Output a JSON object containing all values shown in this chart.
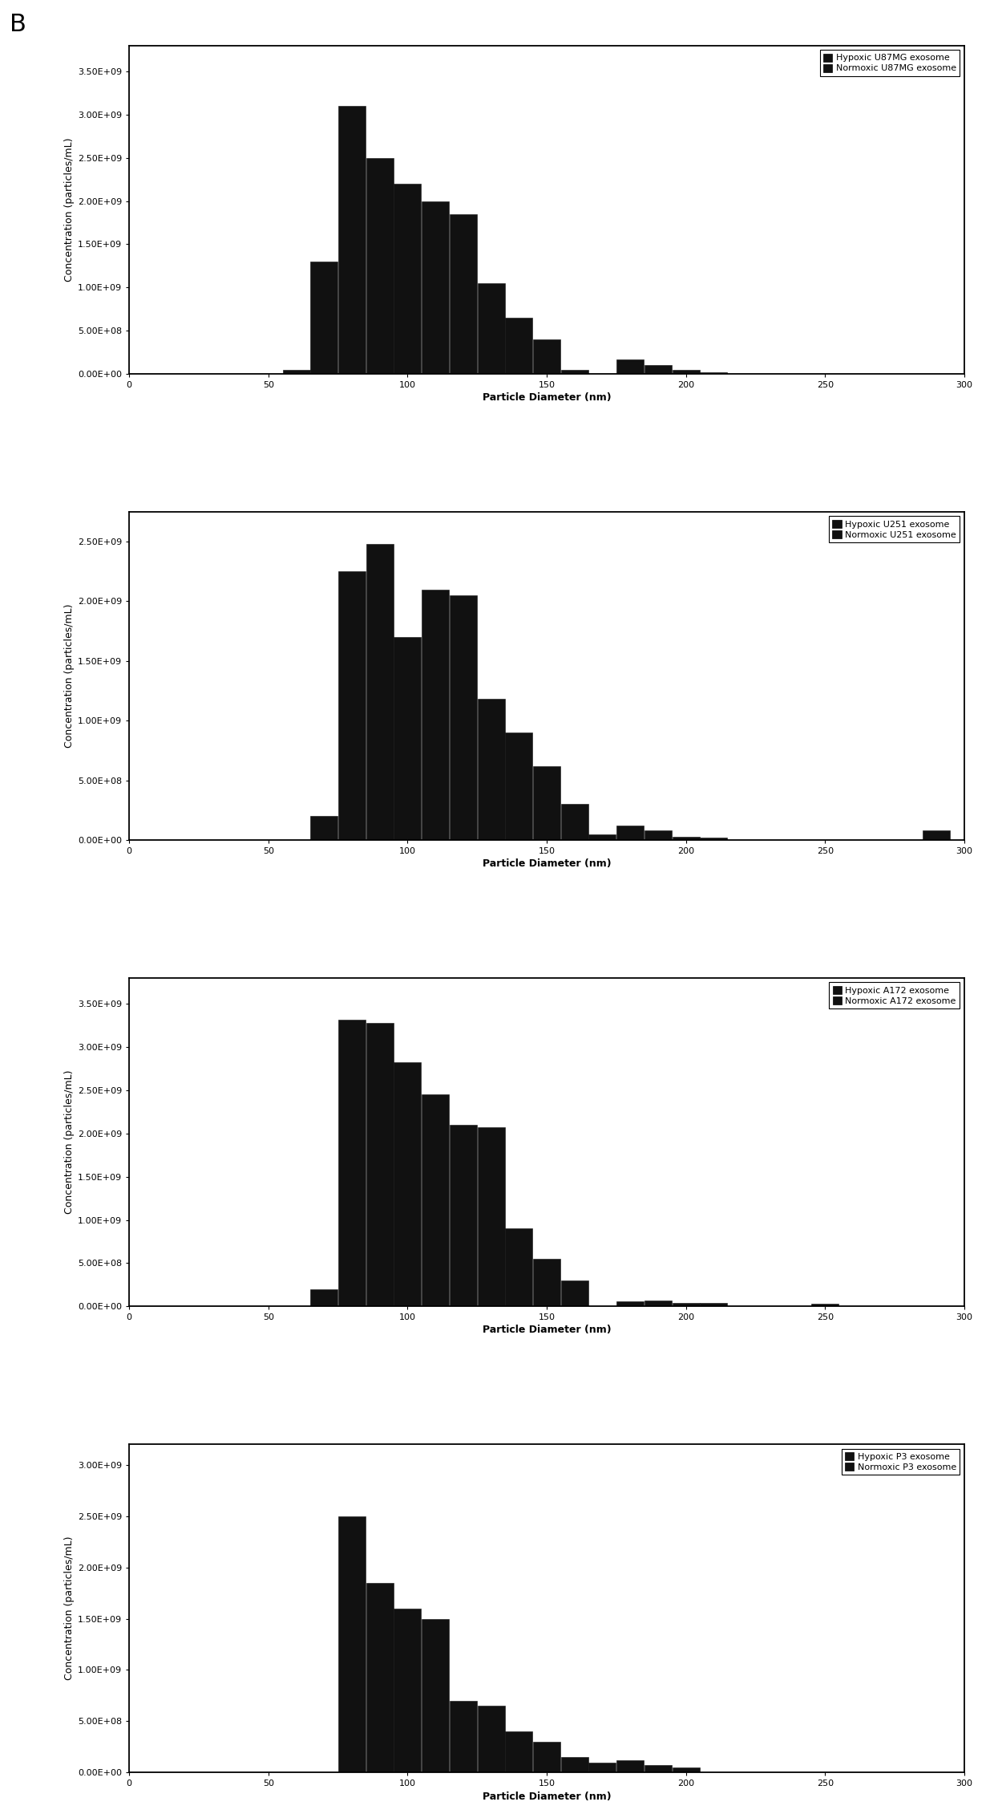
{
  "charts": [
    {
      "legend_labels": [
        "Hypoxic U87MG exosome",
        "Normoxic U87MG exosome"
      ],
      "ylabel": "Concentration (particles/mL)",
      "xlabel": "Particle Diameter (nm)",
      "xlim": [
        0,
        300
      ],
      "ylim": [
        0,
        3800000000.0
      ],
      "yticks": [
        0.0,
        500000000.0,
        1000000000.0,
        1500000000.0,
        2000000000.0,
        2500000000.0,
        3000000000.0,
        3500000000.0
      ],
      "ytick_labels": [
        "0.00E+00",
        "5.00E+08",
        "1.00E+09",
        "1.50E+09",
        "2.00E+09",
        "2.50E+09",
        "3.00E+09",
        "3.50E+09"
      ],
      "xticks": [
        0,
        50,
        100,
        150,
        200,
        250,
        300
      ],
      "bar_centers": [
        60,
        70,
        80,
        90,
        100,
        110,
        120,
        130,
        140,
        150,
        160,
        170,
        180,
        190,
        200,
        210,
        220
      ],
      "bar_values": [
        50000000.0,
        1300000000.0,
        3100000000.0,
        2500000000.0,
        2200000000.0,
        2000000000.0,
        1850000000.0,
        1050000000.0,
        650000000.0,
        400000000.0,
        50000000.0,
        0.0,
        170000000.0,
        100000000.0,
        50000000.0,
        20000000.0,
        0.0
      ],
      "bar_width": 9.8,
      "bar_color": "#111111"
    },
    {
      "legend_labels": [
        "Hypoxic U251 exosome",
        "Normoxic U251 exosome"
      ],
      "ylabel": "Concentration (particles/mL)",
      "xlabel": "Particle Diameter (nm)",
      "xlim": [
        0,
        300
      ],
      "ylim": [
        0,
        2750000000.0
      ],
      "yticks": [
        0.0,
        500000000.0,
        1000000000.0,
        1500000000.0,
        2000000000.0,
        2500000000.0
      ],
      "ytick_labels": [
        "0.00E+00",
        "5.00E+08",
        "1.00E+09",
        "1.50E+09",
        "2.00E+09",
        "2.50E+09"
      ],
      "xticks": [
        0,
        50,
        100,
        150,
        200,
        250,
        300
      ],
      "bar_centers": [
        60,
        70,
        80,
        90,
        100,
        110,
        120,
        130,
        140,
        150,
        160,
        170,
        180,
        190,
        200,
        210,
        220,
        230,
        240,
        250,
        260,
        270,
        280,
        290
      ],
      "bar_values": [
        0.0,
        200000000.0,
        2250000000.0,
        2480000000.0,
        1700000000.0,
        2100000000.0,
        2050000000.0,
        1180000000.0,
        900000000.0,
        620000000.0,
        300000000.0,
        50000000.0,
        120000000.0,
        80000000.0,
        30000000.0,
        20000000.0,
        0.0,
        0.0,
        0.0,
        0.0,
        0.0,
        0.0,
        0.0,
        80000000.0
      ],
      "bar_width": 9.8,
      "bar_color": "#111111"
    },
    {
      "legend_labels": [
        "Hypoxic A172 exosome",
        "Normoxic A172 exosome"
      ],
      "ylabel": "Concentration (particles/mL)",
      "xlabel": "Particle Diameter (nm)",
      "xlim": [
        0,
        300
      ],
      "ylim": [
        0,
        3800000000.0
      ],
      "yticks": [
        0.0,
        500000000.0,
        1000000000.0,
        1500000000.0,
        2000000000.0,
        2500000000.0,
        3000000000.0,
        3500000000.0
      ],
      "ytick_labels": [
        "0.00E+00",
        "5.00E+08",
        "1.00E+09",
        "1.50E+09",
        "2.00E+09",
        "2.50E+09",
        "3.00E+09",
        "3.50E+09"
      ],
      "xticks": [
        0,
        50,
        100,
        150,
        200,
        250,
        300
      ],
      "bar_centers": [
        60,
        70,
        80,
        90,
        100,
        110,
        120,
        130,
        140,
        150,
        160,
        170,
        180,
        190,
        200,
        210,
        220,
        230,
        240,
        250,
        260
      ],
      "bar_values": [
        0.0,
        200000000.0,
        3320000000.0,
        3280000000.0,
        2820000000.0,
        2450000000.0,
        2100000000.0,
        2070000000.0,
        900000000.0,
        550000000.0,
        300000000.0,
        0.0,
        60000000.0,
        70000000.0,
        40000000.0,
        40000000.0,
        0.0,
        0.0,
        0.0,
        30000000.0,
        0.0
      ],
      "bar_width": 9.8,
      "bar_color": "#111111"
    },
    {
      "legend_labels": [
        "Hypoxic P3 exosome",
        "Normoxic P3 exosome"
      ],
      "ylabel": "Concentration (particles/mL)",
      "xlabel": "Particle Diameter (nm)",
      "xlim": [
        0,
        300
      ],
      "ylim": [
        0,
        3200000000.0
      ],
      "yticks": [
        0.0,
        500000000.0,
        1000000000.0,
        1500000000.0,
        2000000000.0,
        2500000000.0,
        3000000000.0
      ],
      "ytick_labels": [
        "0.00E+00",
        "5.00E+08",
        "1.00E+09",
        "1.50E+09",
        "2.00E+09",
        "2.50E+09",
        "3.00E+09"
      ],
      "xticks": [
        0,
        50,
        100,
        150,
        200,
        250,
        300
      ],
      "bar_centers": [
        60,
        70,
        80,
        90,
        100,
        110,
        120,
        130,
        140,
        150,
        160,
        170,
        180,
        190,
        200,
        210,
        220
      ],
      "bar_values": [
        0.0,
        0.0,
        2500000000.0,
        1850000000.0,
        1600000000.0,
        1500000000.0,
        700000000.0,
        650000000.0,
        400000000.0,
        300000000.0,
        150000000.0,
        100000000.0,
        120000000.0,
        70000000.0,
        50000000.0,
        0.0,
        0.0
      ],
      "bar_width": 9.8,
      "bar_color": "#111111"
    }
  ],
  "background_color": "#ffffff",
  "label_B": "B",
  "label_B_fontsize": 22,
  "axis_label_fontsize": 9,
  "tick_fontsize": 8,
  "legend_fontsize": 8,
  "bar_edgecolor": "#111111"
}
